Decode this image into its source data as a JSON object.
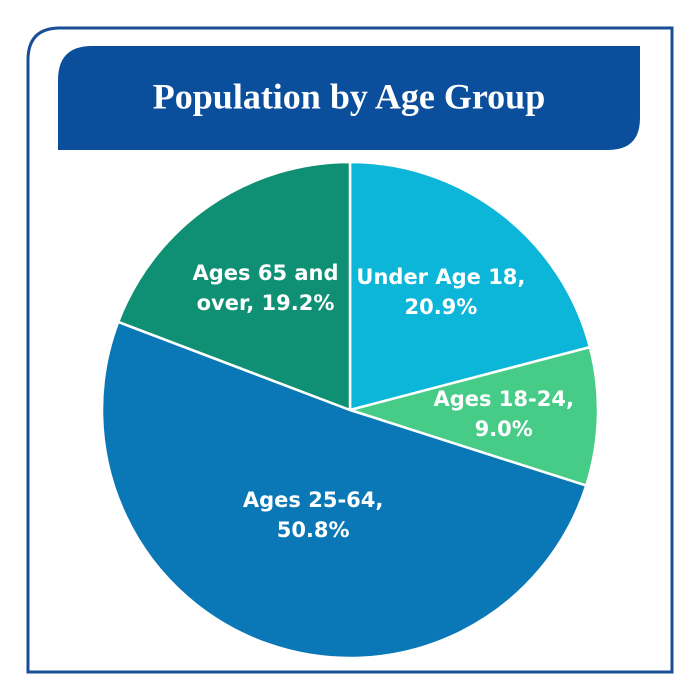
{
  "chart_data": {
    "type": "pie",
    "title": "Population by Age Group",
    "categories": [
      "Under Age 18,",
      "Ages 18-24,",
      "Ages 25-64,",
      "Ages 65 and over,"
    ],
    "values": [
      20.9,
      9.0,
      50.8,
      19.2
    ],
    "value_labels": [
      "20.9%",
      "9.0%",
      "50.8%",
      "19.2%"
    ],
    "colors": [
      "#0bb6d9",
      "#47cc88",
      "#0a78b7",
      "#0f9074"
    ]
  }
}
